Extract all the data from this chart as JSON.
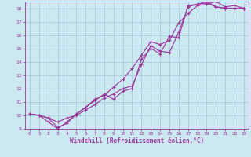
{
  "xlabel": "Windchill (Refroidissement éolien,°C)",
  "bg_color": "#cce8f0",
  "grid_color": "#aaccdd",
  "line_color": "#993399",
  "xlim": [
    -0.5,
    23.5
  ],
  "ylim": [
    9,
    18.5
  ],
  "xticks": [
    0,
    1,
    2,
    3,
    4,
    5,
    6,
    7,
    8,
    9,
    10,
    11,
    12,
    13,
    14,
    15,
    16,
    17,
    18,
    19,
    20,
    21,
    22,
    23
  ],
  "yticks": [
    9,
    10,
    11,
    12,
    13,
    14,
    15,
    16,
    17,
    18
  ],
  "line1_x": [
    0,
    1,
    2,
    3,
    4,
    5,
    6,
    7,
    8,
    9,
    10,
    11,
    12,
    13,
    14,
    15,
    16,
    17,
    18,
    19,
    20,
    21,
    22,
    23
  ],
  "line1_y": [
    10.1,
    10.0,
    9.8,
    9.5,
    9.8,
    10.0,
    10.4,
    10.8,
    11.3,
    11.6,
    12.0,
    12.2,
    13.8,
    15.2,
    14.8,
    14.7,
    16.2,
    18.1,
    18.3,
    18.5,
    18.1,
    18.0,
    18.0,
    18.0
  ],
  "line2_x": [
    0,
    1,
    2,
    3,
    4,
    5,
    6,
    7,
    8,
    9,
    10,
    11,
    12,
    13,
    14,
    15,
    16,
    17,
    18,
    19,
    20,
    21,
    22,
    23
  ],
  "line2_y": [
    10.1,
    10.0,
    9.8,
    9.1,
    9.4,
    10.1,
    10.6,
    11.1,
    11.6,
    11.2,
    11.8,
    12.0,
    14.2,
    15.0,
    14.6,
    15.9,
    15.8,
    18.2,
    18.3,
    18.4,
    18.1,
    18.0,
    18.0,
    18.0
  ],
  "line3_x": [
    0,
    1,
    2,
    3,
    4,
    5,
    6,
    7,
    8,
    9,
    10,
    11,
    12,
    13,
    14,
    15,
    16,
    17,
    18,
    19,
    20,
    21,
    22,
    23
  ],
  "line3_y": [
    10.1,
    10.0,
    9.5,
    9.0,
    9.5,
    10.1,
    10.6,
    11.2,
    11.5,
    12.1,
    12.7,
    13.5,
    14.5,
    15.5,
    15.3,
    15.6,
    16.9,
    17.6,
    18.2,
    18.3,
    18.5,
    18.1,
    18.2,
    18.0
  ]
}
